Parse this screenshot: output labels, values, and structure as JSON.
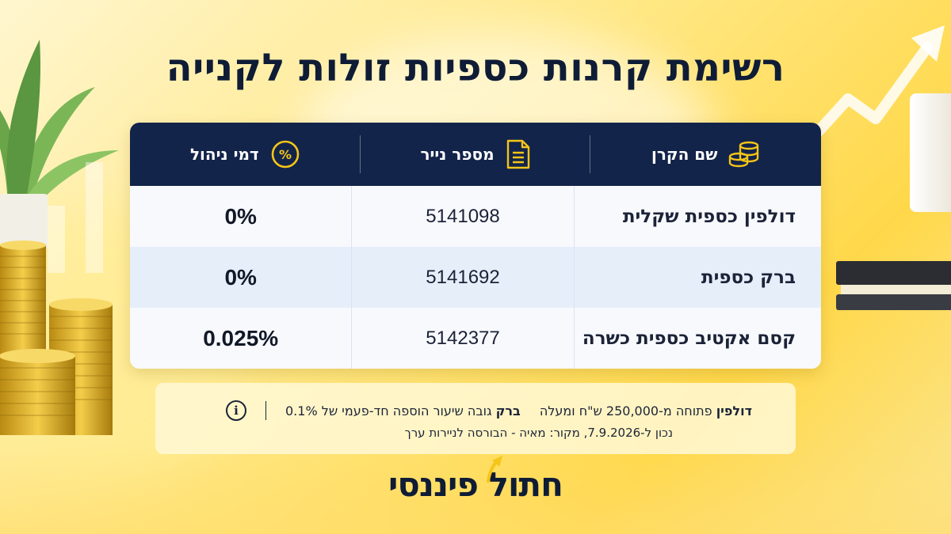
{
  "title": "רשימת קרנות כספיות זולות לקנייה",
  "table": {
    "headers": [
      {
        "label": "שם הקרן",
        "icon": "coins-stack-icon"
      },
      {
        "label": "מספר נייר",
        "icon": "document-icon"
      },
      {
        "label": "דמי ניהול",
        "icon": "percent-badge-icon"
      }
    ],
    "rows": [
      {
        "name": "דולפין כספית שקלית",
        "number": "5141098",
        "fee": "0%"
      },
      {
        "name": "ברק כספית",
        "number": "5141692",
        "fee": "0%"
      },
      {
        "name": "קסם אקטיב כספית כשרה",
        "number": "5142377",
        "fee": "0.025%"
      }
    ]
  },
  "note": {
    "dolphin_bold": "דולפין",
    "dolphin_text": "פתוחה מ-250,000 ש\"ח ומעלה",
    "barak_bold": "ברק",
    "barak_text": "גובה שיעור הוספה חד-פעמי של 0.1%",
    "source": "נכון ל-7.9.2026, מקור: מאיה - הבורסה לניירות ערך",
    "icon": "info-icon"
  },
  "logo": {
    "text": "חתול פיננסי",
    "icon": "up-arrow-icon"
  },
  "colors": {
    "navy": "#13244a",
    "accent_gold": "#f5c518",
    "row_alt": "#e6eefa"
  }
}
